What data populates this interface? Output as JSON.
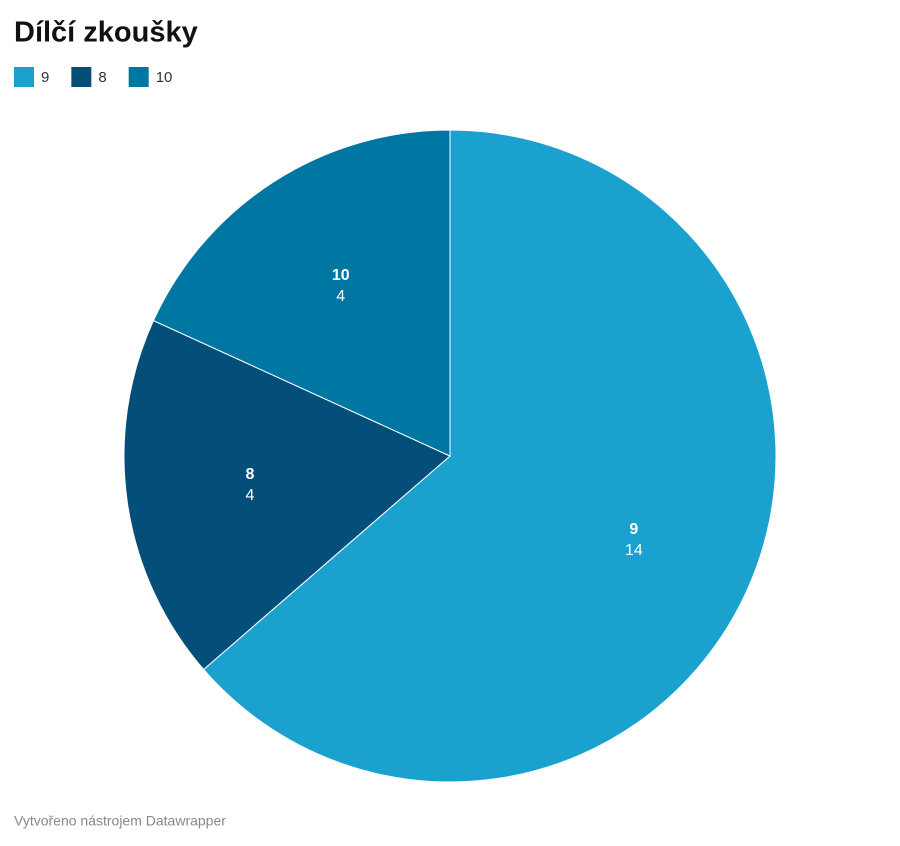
{
  "chart_data": {
    "type": "pie",
    "title": "Dílčí zkoušky",
    "categories": [
      "9",
      "8",
      "10"
    ],
    "values": [
      14,
      4,
      4
    ],
    "colors": [
      "#1aa1ce",
      "#034f79",
      "#0076a3"
    ],
    "credit": "Vytvořeno nástrojem Datawrapper"
  }
}
